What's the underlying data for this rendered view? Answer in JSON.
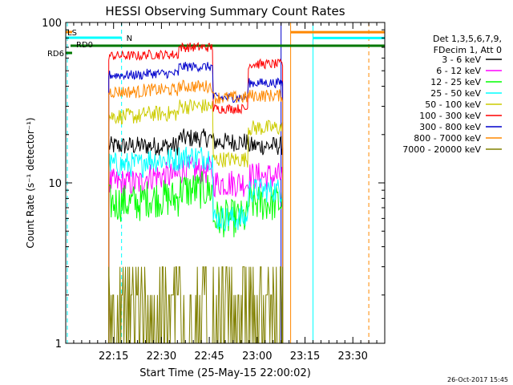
{
  "chart_data": {
    "type": "line",
    "title": "HESSI Observing Summary Count Rates",
    "xlabel": "Start Time (25-May-15 22:00:02)",
    "ylabel": "Count Rate (s⁻¹ detector⁻¹)",
    "yscale": "log",
    "ylim": [
      1,
      100
    ],
    "xlim_minutes": [
      0,
      100
    ],
    "x_ticks": [
      {
        "minute": 15,
        "label": "22:15"
      },
      {
        "minute": 30,
        "label": "22:30"
      },
      {
        "minute": 45,
        "label": "22:45"
      },
      {
        "minute": 60,
        "label": "23:00"
      },
      {
        "minute": 75,
        "label": "23:15"
      },
      {
        "minute": 90,
        "label": "23:30"
      }
    ],
    "y_ticks": [
      {
        "value": 1,
        "label": "1"
      },
      {
        "value": 10,
        "label": "10"
      },
      {
        "value": 100,
        "label": "100"
      }
    ],
    "legend": {
      "placement": "right",
      "header": [
        "Det 1,3,5,6,7,9,",
        "FDecim 1, Att 0"
      ]
    },
    "series": [
      {
        "name": "3 - 6 keV",
        "color": "#000000",
        "start": 13.5,
        "end": 68,
        "levels": [
          17,
          17,
          19,
          18,
          17
        ],
        "noise": 0.06
      },
      {
        "name": "6 - 12 keV",
        "color": "#ff00ff",
        "start": 13.5,
        "end": 68,
        "levels": [
          10,
          11,
          12,
          10,
          11
        ],
        "noise": 0.09
      },
      {
        "name": "12 - 25 keV",
        "color": "#00ff00",
        "start": 13.5,
        "end": 68,
        "levels": [
          7.5,
          8,
          9,
          6,
          7.5
        ],
        "noise": 0.12
      },
      {
        "name": "25 - 50 keV",
        "color": "#00ffff",
        "start": 13.5,
        "end": 68,
        "levels": [
          13,
          14,
          14.5,
          6,
          9
        ],
        "noise": 0.08
      },
      {
        "name": "50 - 100 keV",
        "color": "#cccc00",
        "start": 13.5,
        "end": 68,
        "levels": [
          26,
          27,
          30,
          14,
          22
        ],
        "noise": 0.05
      },
      {
        "name": "100 - 300 keV",
        "color": "#ff0000",
        "start": 13.5,
        "end": 68,
        "levels": [
          62,
          63,
          70,
          29,
          55
        ],
        "noise": 0.03
      },
      {
        "name": "300 - 800 keV",
        "color": "#0000cc",
        "start": 13.5,
        "end": 68,
        "levels": [
          47,
          48,
          53,
          34,
          42
        ],
        "noise": 0.03
      },
      {
        "name": "800 - 7000 keV",
        "color": "#ff8800",
        "start": 13.5,
        "end": 68,
        "levels": [
          37,
          38,
          40,
          34,
          35
        ],
        "noise": 0.04
      },
      {
        "name": "7000 - 20000 keV",
        "color": "#808000",
        "start": 13.5,
        "end": 68,
        "levels": [
          1.5,
          2,
          2.5,
          2.5,
          2
        ],
        "noise": 0.25
      }
    ],
    "flags": [
      {
        "label": "LS",
        "color": "#ff8800",
        "segments": [
          [
            0,
            2
          ]
        ]
      },
      {
        "label": "N",
        "color": "#00ffff",
        "segments": [
          [
            0,
            17.5
          ]
        ]
      },
      {
        "label": "RD6",
        "color": "#007700",
        "segments": [
          [
            0,
            2
          ]
        ]
      },
      {
        "label": "RD0",
        "color": "#007700",
        "segments": [
          [
            1.5,
            100
          ]
        ]
      }
    ],
    "vertical_markers": [
      {
        "minute": 0.5,
        "color": "#00ffff",
        "style": "dashed"
      },
      {
        "minute": 17.5,
        "color": "#00ffff",
        "style": "dashed"
      },
      {
        "minute": 67.5,
        "color": "#0000cc",
        "style": "solid"
      },
      {
        "minute": 70.5,
        "color": "#ff8800",
        "style": "solid"
      },
      {
        "minute": 77.5,
        "color": "#00ffff",
        "style": "solid"
      },
      {
        "minute": 95,
        "color": "#ff8800",
        "style": "dashed"
      }
    ],
    "attenuator_bars": [
      {
        "color": "#ff8800",
        "from": 70.5,
        "to": 100,
        "value": 87
      },
      {
        "color": "#00ffff",
        "from": 77.5,
        "to": 100,
        "value": 80
      }
    ]
  },
  "timestamp": "26-Oct-2017 15:45"
}
